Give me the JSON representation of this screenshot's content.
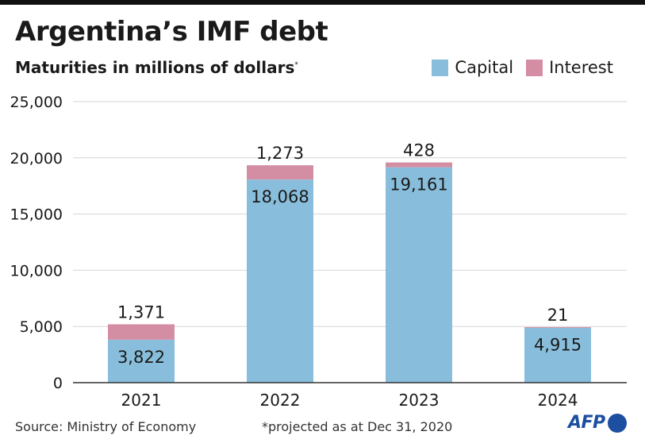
{
  "chart_data": {
    "type": "bar",
    "stacked": true,
    "title": "Argentina’s IMF debt",
    "subtitle": "Maturities in millions of dollars",
    "subtitle_mark": "*",
    "categories": [
      "2021",
      "2022",
      "2023",
      "2024"
    ],
    "series": [
      {
        "name": "Capital",
        "color": "#88bedb",
        "values": [
          3822,
          18068,
          19161,
          4915
        ],
        "labels": [
          "3,822",
          "18,068",
          "19,161",
          "4,915"
        ]
      },
      {
        "name": "Interest",
        "color": "#d48ea4",
        "values": [
          1371,
          1273,
          428,
          21
        ],
        "labels": [
          "1,371",
          "1,273",
          "428",
          "21"
        ]
      }
    ],
    "ylim": [
      0,
      25000
    ],
    "yticks": [
      0,
      5000,
      10000,
      15000,
      20000,
      25000
    ],
    "ytick_labels": [
      "0",
      "5,000",
      "10,000",
      "15,000",
      "20,000",
      "25,000"
    ],
    "grid": true,
    "legend_position": "top-right"
  },
  "footer": {
    "source": "Source: Ministry of Economy",
    "note": "*projected as at Dec 31, 2020",
    "logo": "AFP"
  }
}
